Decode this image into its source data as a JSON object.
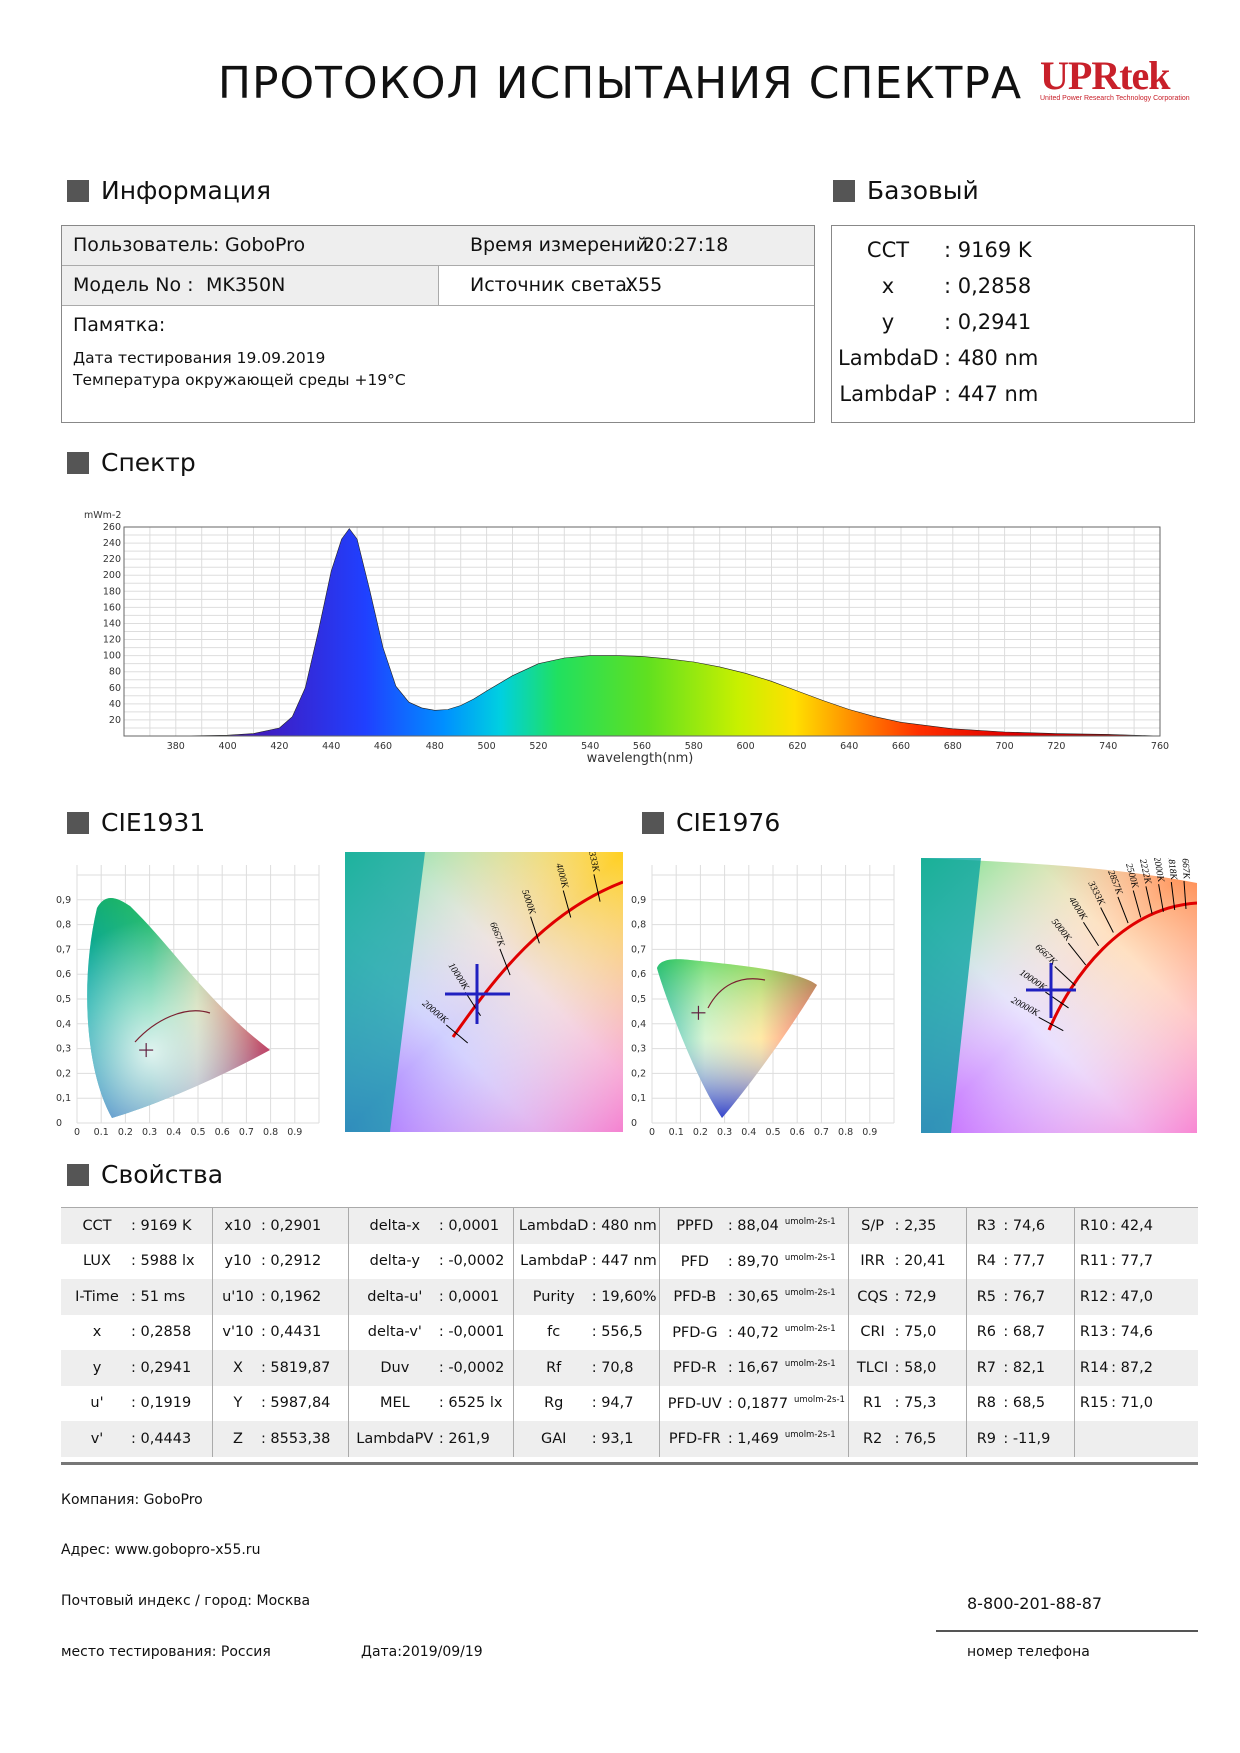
{
  "title": "ПРОТОКОЛ ИСПЫТАНИЯ СПЕКТРА",
  "logo": {
    "text": "UPRtek",
    "subtitle": "United Power Research Technology Corporation",
    "color": "#c8202a"
  },
  "sections": {
    "info": "Информация",
    "basic": "Базовый",
    "spectrum": "Спектр",
    "cie1931": "CIE1931",
    "cie1976": "CIE1976",
    "properties": "Свойства"
  },
  "info": {
    "user_label": "Пользователь:",
    "user_value": "GoboPro",
    "time_label": "Время измерений:",
    "time_value": "20:27:18",
    "model_label": "Модель No :",
    "model_value": "MK350N",
    "source_label": "Источник света:",
    "source_value": "X55",
    "memo_label": "Памятка:",
    "memo_line1": "Дата тестирования 19.09.2019",
    "memo_line2": "Температура окружающей среды +19°С"
  },
  "basic": [
    {
      "key": "CCT",
      "value": ": 9169 K"
    },
    {
      "key": "x",
      "value": ": 0,2858"
    },
    {
      "key": "y",
      "value": ": 0,2941"
    },
    {
      "key": "LambdaD",
      "value": ": 480 nm"
    },
    {
      "key": "LambdaP",
      "value": ": 447 nm"
    }
  ],
  "chart_data": {
    "type": "area",
    "title": "",
    "ylabel": "mWm-2",
    "xlabel": "wavelength(nm)",
    "xlim": [
      360,
      760
    ],
    "ylim": [
      0,
      260
    ],
    "grid": true,
    "x_ticks": [
      380,
      400,
      420,
      440,
      460,
      480,
      500,
      520,
      540,
      560,
      580,
      600,
      620,
      640,
      660,
      680,
      700,
      720,
      740,
      760
    ],
    "y_ticks": [
      20,
      40,
      60,
      80,
      100,
      120,
      140,
      160,
      180,
      200,
      220,
      240,
      260
    ],
    "x": [
      380,
      400,
      410,
      420,
      425,
      430,
      435,
      440,
      444,
      447,
      450,
      455,
      460,
      465,
      470,
      475,
      480,
      485,
      490,
      495,
      500,
      510,
      520,
      530,
      540,
      550,
      560,
      570,
      580,
      590,
      600,
      610,
      620,
      630,
      640,
      650,
      660,
      680,
      700,
      720,
      740,
      760
    ],
    "values": [
      0,
      1,
      3,
      10,
      24,
      60,
      130,
      205,
      245,
      258,
      245,
      180,
      110,
      62,
      42,
      35,
      32,
      33,
      38,
      46,
      56,
      75,
      90,
      97,
      100,
      100,
      99,
      96,
      92,
      86,
      78,
      68,
      56,
      44,
      33,
      24,
      17,
      9,
      5,
      3,
      2,
      0
    ]
  },
  "cie1931": {
    "y_ticks": [
      "0,9",
      "0,8",
      "0,7",
      "0,6",
      "0,5",
      "0,4",
      "0,3",
      "0,2",
      "0,1",
      "0"
    ],
    "x_ticks": [
      "0",
      "0,1",
      "0,2",
      "0,3",
      "0,4",
      "0,5",
      "0,6",
      "0,7",
      "0,8",
      "0,9"
    ],
    "point": {
      "x": 0.2858,
      "y": 0.2941
    },
    "zoom_labels": [
      "20000K",
      "10000K",
      "6667K",
      "5000K",
      "4000K",
      "3333K"
    ]
  },
  "cie1976": {
    "y_ticks": [
      "0,9",
      "0,8",
      "0,7",
      "0,6",
      "0,5",
      "0,4",
      "0,3",
      "0,2",
      "0,1",
      "0"
    ],
    "x_ticks": [
      "0",
      "0,1",
      "0,2",
      "0,3",
      "0,4",
      "0,5",
      "0,6",
      "0,7",
      "0,8",
      "0,9"
    ],
    "point": {
      "u": 0.1919,
      "v": 0.4443
    },
    "zoom_labels": [
      "20000K",
      "10000K",
      "6667K",
      "5000K",
      "4000K",
      "3333K",
      "2857K",
      "2500K",
      "2222K",
      "2000K",
      "1818K",
      "1667K"
    ]
  },
  "properties": [
    [
      {
        "k": "CCT",
        "v": ": 9169 K"
      },
      {
        "k": "x10",
        "v": ": 0,2901"
      },
      {
        "k": "delta-x",
        "v": ": 0,0001"
      },
      {
        "k": "LambdaD",
        "v": ": 480 nm"
      },
      {
        "k": "PPFD",
        "v": ": 88,04",
        "u": "umolm-2s-1"
      },
      {
        "k": "S/P",
        "v": ": 2,35"
      },
      {
        "k": "R3",
        "v": ": 74,6"
      },
      {
        "k": "R10",
        "v": ": 42,4"
      }
    ],
    [
      {
        "k": "LUX",
        "v": ": 5988 lx"
      },
      {
        "k": "y10",
        "v": ": 0,2912"
      },
      {
        "k": "delta-y",
        "v": ": -0,0002"
      },
      {
        "k": "LambdaP",
        "v": ": 447 nm"
      },
      {
        "k": "PFD",
        "v": ": 89,70",
        "u": "umolm-2s-1"
      },
      {
        "k": "IRR",
        "v": ": 20,41"
      },
      {
        "k": "R4",
        "v": ": 77,7"
      },
      {
        "k": "R11",
        "v": ": 77,7"
      }
    ],
    [
      {
        "k": "I-Time",
        "v": ": 51 ms"
      },
      {
        "k": "u'10",
        "v": ": 0,1962"
      },
      {
        "k": "delta-u'",
        "v": ": 0,0001"
      },
      {
        "k": "Purity",
        "v": ": 19,60%"
      },
      {
        "k": "PFD-B",
        "v": ": 30,65",
        "u": "umolm-2s-1"
      },
      {
        "k": "CQS",
        "v": ": 72,9"
      },
      {
        "k": "R5",
        "v": ": 76,7"
      },
      {
        "k": "R12",
        "v": ": 47,0"
      }
    ],
    [
      {
        "k": "x",
        "v": ": 0,2858"
      },
      {
        "k": "v'10",
        "v": ": 0,4431"
      },
      {
        "k": "delta-v'",
        "v": ": -0,0001"
      },
      {
        "k": "fc",
        "v": ": 556,5"
      },
      {
        "k": "PFD-G",
        "v": ": 40,72",
        "u": "umolm-2s-1"
      },
      {
        "k": "CRI",
        "v": ": 75,0"
      },
      {
        "k": "R6",
        "v": ": 68,7"
      },
      {
        "k": "R13",
        "v": ": 74,6"
      }
    ],
    [
      {
        "k": "y",
        "v": ": 0,2941"
      },
      {
        "k": "X",
        "v": ": 5819,87"
      },
      {
        "k": "Duv",
        "v": ": -0,0002"
      },
      {
        "k": "Rf",
        "v": ": 70,8"
      },
      {
        "k": "PFD-R",
        "v": ": 16,67",
        "u": "umolm-2s-1"
      },
      {
        "k": "TLCI",
        "v": ": 58,0"
      },
      {
        "k": "R7",
        "v": ": 82,1"
      },
      {
        "k": "R14",
        "v": ": 87,2"
      }
    ],
    [
      {
        "k": "u'",
        "v": ": 0,1919"
      },
      {
        "k": "Y",
        "v": ": 5987,84"
      },
      {
        "k": "MEL",
        "v": ": 6525 lx"
      },
      {
        "k": "Rg",
        "v": ": 94,7"
      },
      {
        "k": "PFD-UV",
        "v": ": 0,1877",
        "u": "umolm-2s-1"
      },
      {
        "k": "R1",
        "v": ": 75,3"
      },
      {
        "k": "R8",
        "v": ": 68,5"
      },
      {
        "k": "R15",
        "v": ": 71,0"
      }
    ],
    [
      {
        "k": "v'",
        "v": ": 0,4443"
      },
      {
        "k": "Z",
        "v": ": 8553,38"
      },
      {
        "k": "LambdaPV",
        "v": ": 261,9"
      },
      {
        "k": "GAI",
        "v": ": 93,1"
      },
      {
        "k": "PFD-FR",
        "v": ": 1,469",
        "u": "umolm-2s-1"
      },
      {
        "k": "R2",
        "v": ": 76,5"
      },
      {
        "k": "R9",
        "v": ": -11,9"
      },
      {
        "k": "",
        "v": ""
      }
    ]
  ],
  "footer": {
    "company_label": "Компания:",
    "company_value": "GoboPro",
    "address_label": "Адрес:",
    "address_value": "www.gobopro-x55.ru",
    "city_label": "Почтовый индекс / город:",
    "city_value": "Москва",
    "place_label": "место тестирования:",
    "place_value": "Россия",
    "date_label": "Дата:",
    "date_value": "2019/09/19",
    "phone_value": "8-800-201-88-87",
    "phone_label": "номер телефона"
  }
}
